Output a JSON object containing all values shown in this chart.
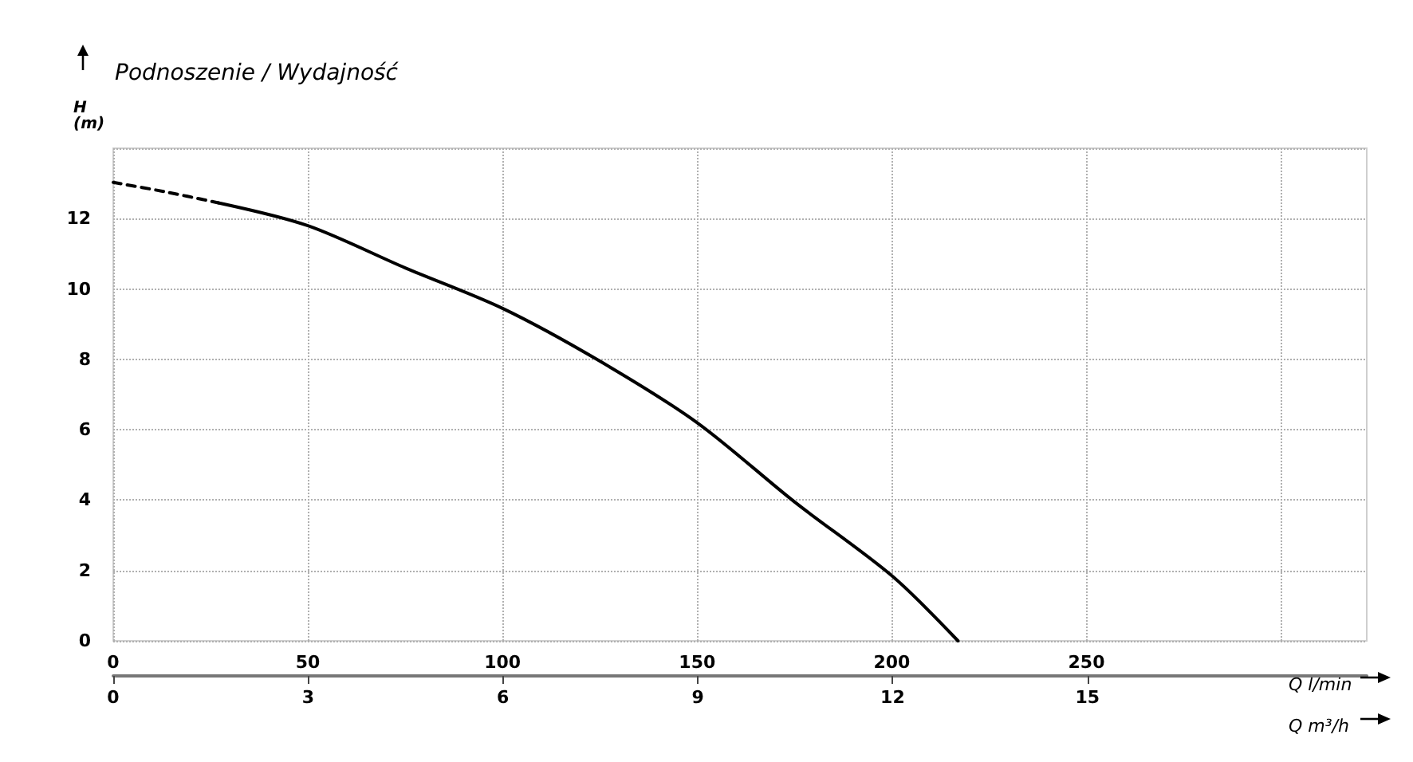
{
  "chart_data": {
    "type": "line",
    "title": "Podnoszenie / Wydajność",
    "ylabel": "H\n(m)",
    "xlabel": "Q l/min",
    "x2label": "Q m³/h",
    "xlim": [
      0,
      322
    ],
    "xticks": [
      0,
      50,
      100,
      150,
      200,
      250,
      {
        "value": 300,
        "label": null
      }
    ],
    "x2lim": [
      0,
      19.3
    ],
    "x2ticks": [
      0,
      3,
      6,
      9,
      12,
      15
    ],
    "ylim": [
      0,
      14
    ],
    "yticks": [
      0,
      2,
      4,
      6,
      8,
      10,
      12,
      {
        "value": 14,
        "label": null
      }
    ],
    "grid": true,
    "marker": "none",
    "series": [
      {
        "color": "#000000",
        "line_style": "dashed",
        "x": [
          0,
          13,
          27
        ],
        "values": [
          13.03,
          12.77,
          12.45
        ]
      },
      {
        "color": "#000000",
        "line_style": "solid",
        "x": [
          27,
          50,
          75,
          100,
          125,
          150,
          175,
          200,
          217
        ],
        "values": [
          12.45,
          11.8,
          10.6,
          9.45,
          7.95,
          6.2,
          3.95,
          1.85,
          0
        ]
      }
    ]
  }
}
